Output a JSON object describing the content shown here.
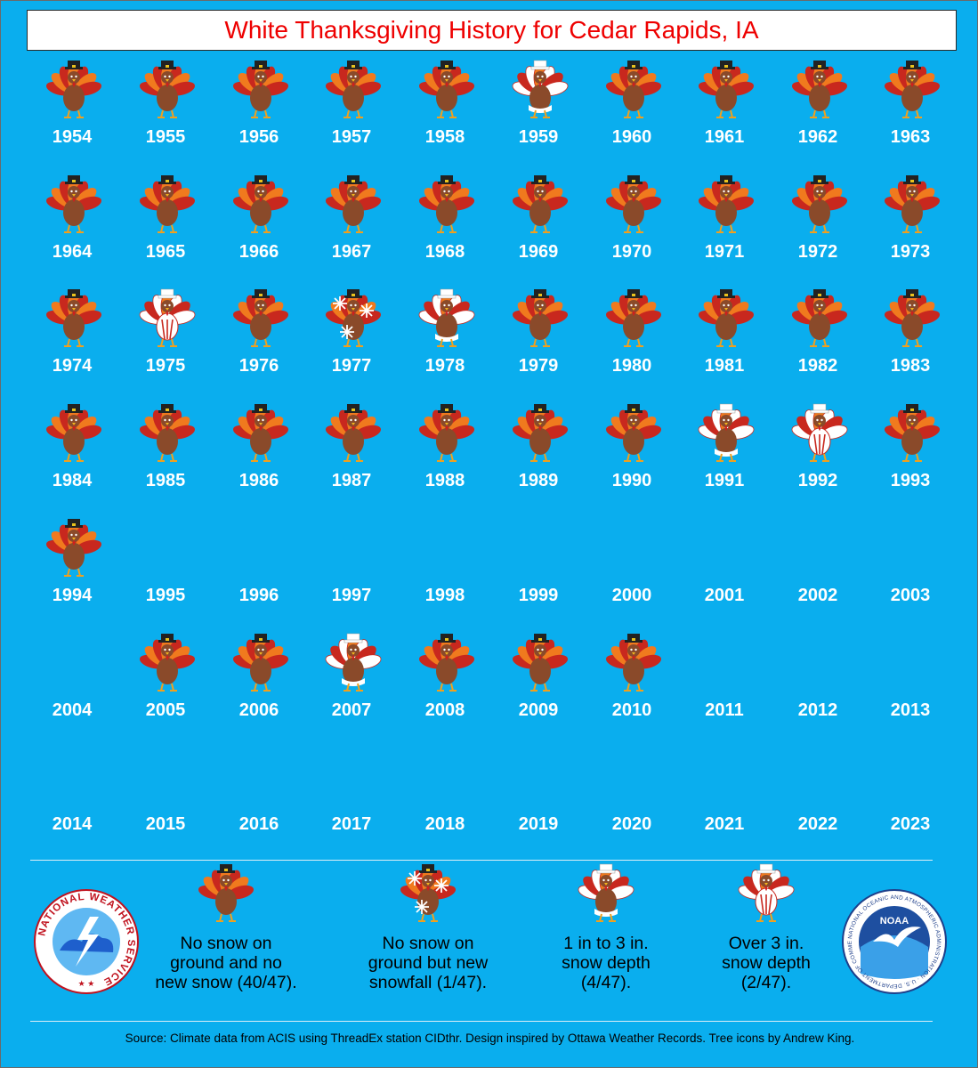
{
  "title": "White Thanksgiving History for Cedar Rapids, IA",
  "chart_data": {
    "type": "icon-grid",
    "title": "White Thanksgiving History for Cedar Rapids, IA",
    "categories": [
      "no-snow",
      "new-snowfall",
      "1-3in",
      "over-3in",
      "no-data"
    ],
    "years": [
      {
        "year": "1954",
        "category": "no-snow"
      },
      {
        "year": "1955",
        "category": "no-snow"
      },
      {
        "year": "1956",
        "category": "no-snow"
      },
      {
        "year": "1957",
        "category": "no-snow"
      },
      {
        "year": "1958",
        "category": "no-snow"
      },
      {
        "year": "1959",
        "category": "1-3in"
      },
      {
        "year": "1960",
        "category": "no-snow"
      },
      {
        "year": "1961",
        "category": "no-snow"
      },
      {
        "year": "1962",
        "category": "no-snow"
      },
      {
        "year": "1963",
        "category": "no-snow"
      },
      {
        "year": "1964",
        "category": "no-snow"
      },
      {
        "year": "1965",
        "category": "no-snow"
      },
      {
        "year": "1966",
        "category": "no-snow"
      },
      {
        "year": "1967",
        "category": "no-snow"
      },
      {
        "year": "1968",
        "category": "no-snow"
      },
      {
        "year": "1969",
        "category": "no-snow"
      },
      {
        "year": "1970",
        "category": "no-snow"
      },
      {
        "year": "1971",
        "category": "no-snow"
      },
      {
        "year": "1972",
        "category": "no-snow"
      },
      {
        "year": "1973",
        "category": "no-snow"
      },
      {
        "year": "1974",
        "category": "no-snow"
      },
      {
        "year": "1975",
        "category": "over-3in"
      },
      {
        "year": "1976",
        "category": "no-snow"
      },
      {
        "year": "1977",
        "category": "new-snowfall"
      },
      {
        "year": "1978",
        "category": "1-3in"
      },
      {
        "year": "1979",
        "category": "no-snow"
      },
      {
        "year": "1980",
        "category": "no-snow"
      },
      {
        "year": "1981",
        "category": "no-snow"
      },
      {
        "year": "1982",
        "category": "no-snow"
      },
      {
        "year": "1983",
        "category": "no-snow"
      },
      {
        "year": "1984",
        "category": "no-snow"
      },
      {
        "year": "1985",
        "category": "no-snow"
      },
      {
        "year": "1986",
        "category": "no-snow"
      },
      {
        "year": "1987",
        "category": "no-snow"
      },
      {
        "year": "1988",
        "category": "no-snow"
      },
      {
        "year": "1989",
        "category": "no-snow"
      },
      {
        "year": "1990",
        "category": "no-snow"
      },
      {
        "year": "1991",
        "category": "1-3in"
      },
      {
        "year": "1992",
        "category": "over-3in"
      },
      {
        "year": "1993",
        "category": "no-snow"
      },
      {
        "year": "1994",
        "category": "no-snow"
      },
      {
        "year": "1995",
        "category": "no-data"
      },
      {
        "year": "1996",
        "category": "no-data"
      },
      {
        "year": "1997",
        "category": "no-data"
      },
      {
        "year": "1998",
        "category": "no-data"
      },
      {
        "year": "1999",
        "category": "no-data"
      },
      {
        "year": "2000",
        "category": "no-data"
      },
      {
        "year": "2001",
        "category": "no-data"
      },
      {
        "year": "2002",
        "category": "no-data"
      },
      {
        "year": "2003",
        "category": "no-data"
      },
      {
        "year": "2004",
        "category": "no-data"
      },
      {
        "year": "2005",
        "category": "no-snow"
      },
      {
        "year": "2006",
        "category": "no-snow"
      },
      {
        "year": "2007",
        "category": "1-3in"
      },
      {
        "year": "2008",
        "category": "no-snow"
      },
      {
        "year": "2009",
        "category": "no-snow"
      },
      {
        "year": "2010",
        "category": "no-snow"
      },
      {
        "year": "2011",
        "category": "no-data"
      },
      {
        "year": "2012",
        "category": "no-data"
      },
      {
        "year": "2013",
        "category": "no-data"
      },
      {
        "year": "2014",
        "category": "no-data"
      },
      {
        "year": "2015",
        "category": "no-data"
      },
      {
        "year": "2016",
        "category": "no-data"
      },
      {
        "year": "2017",
        "category": "no-data"
      },
      {
        "year": "2018",
        "category": "no-data"
      },
      {
        "year": "2019",
        "category": "no-data"
      },
      {
        "year": "2020",
        "category": "no-data"
      },
      {
        "year": "2021",
        "category": "no-data"
      },
      {
        "year": "2022",
        "category": "no-data"
      },
      {
        "year": "2023",
        "category": "no-data"
      }
    ]
  },
  "legend": [
    {
      "category": "no-snow",
      "label_lines": [
        "No snow on",
        "ground and no",
        "new snow (40/47)."
      ]
    },
    {
      "category": "new-snowfall",
      "label_lines": [
        "No snow on",
        "ground but new",
        "snowfall (1/47)."
      ]
    },
    {
      "category": "1-3in",
      "label_lines": [
        "1 in to 3 in.",
        "snow depth",
        "(4/47)."
      ]
    },
    {
      "category": "over-3in",
      "label_lines": [
        "Over 3 in.",
        "snow depth",
        "(2/47)."
      ]
    }
  ],
  "logos": {
    "nws_text": "NATIONAL WEATHER SERVICE",
    "noaa_text": "NOAA",
    "noaa_ring_text": "NATIONAL OCEANIC AND ATMOSPHERIC ADMINISTRATION · U.S. DEPARTMENT OF COMMERCE"
  },
  "source": "Source: Climate data from ACIS using ThreadEx station CIDthr. Design inspired by Ottawa Weather Records. Tree icons by Andrew King.",
  "colors": {
    "background": "#0aaeee",
    "title_text": "#ee0000",
    "turkey_body": "#8a4a2a",
    "feather_red": "#c8281e",
    "feather_orange": "#f07a1e",
    "hat": "#222222",
    "snow": "#ffffff"
  }
}
